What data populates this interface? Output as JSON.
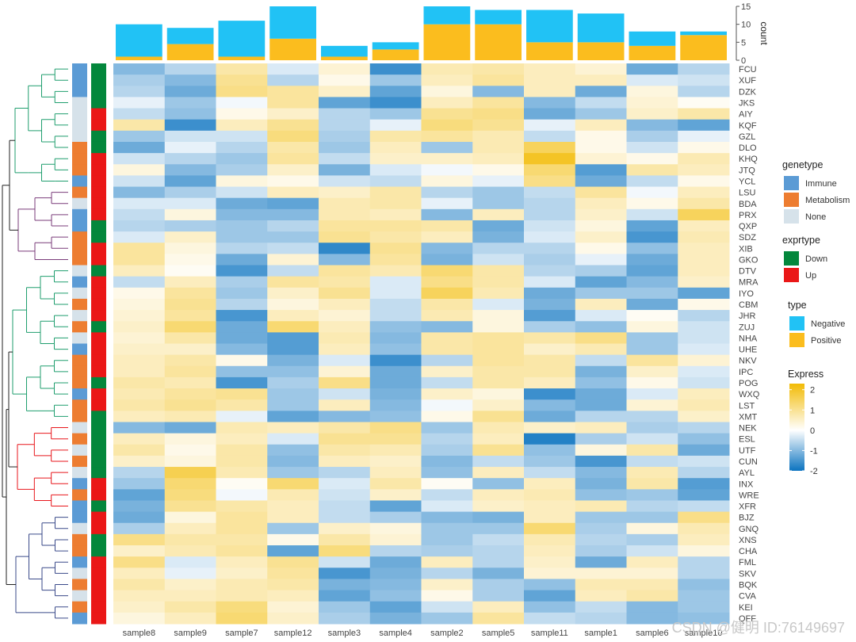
{
  "chart_data": {
    "type": "heatmap",
    "samples": [
      "sample8",
      "sample9",
      "sample7",
      "sample12",
      "sample3",
      "sample4",
      "sample2",
      "sample5",
      "sample11",
      "sample1",
      "sample6",
      "sample10"
    ],
    "genes": [
      "FCU",
      "XUF",
      "DZK",
      "JKS",
      "AIY",
      "KQF",
      "GZL",
      "DLO",
      "KHQ",
      "JTQ",
      "YCL",
      "LSU",
      "BDA",
      "PRX",
      "QXP",
      "SDZ",
      "XIB",
      "GKO",
      "DTV",
      "MRA",
      "IYO",
      "CBM",
      "JHR",
      "ZUJ",
      "NHA",
      "UHE",
      "NKV",
      "IPC",
      "POG",
      "WXQ",
      "LST",
      "XMT",
      "NEK",
      "ESL",
      "UTF",
      "CUN",
      "AYL",
      "INX",
      "WRE",
      "XFR",
      "BJZ",
      "GNQ",
      "XNS",
      "CHA",
      "FML",
      "SKV",
      "BQK",
      "CVA",
      "KEI",
      "QFF"
    ],
    "genetype": [
      "Immune",
      "Immune",
      "Immune",
      "None",
      "None",
      "None",
      "None",
      "Metabolism",
      "Metabolism",
      "Metabolism",
      "Immune",
      "Metabolism",
      "None",
      "Immune",
      "Immune",
      "Metabolism",
      "Metabolism",
      "Metabolism",
      "None",
      "Immune",
      "None",
      "Metabolism",
      "None",
      "Metabolism",
      "None",
      "Immune",
      "Metabolism",
      "Metabolism",
      "Metabolism",
      "Immune",
      "Metabolism",
      "Metabolism",
      "None",
      "Metabolism",
      "None",
      "Metabolism",
      "None",
      "Immune",
      "Metabolism",
      "Immune",
      "Immune",
      "None",
      "Metabolism",
      "Metabolism",
      "Immune",
      "None",
      "Metabolism",
      "None",
      "Metabolism",
      "Immune"
    ],
    "exprtype": [
      "Down",
      "Down",
      "Down",
      "Down",
      "Up",
      "Up",
      "Down",
      "Down",
      "Up",
      "Up",
      "Up",
      "Up",
      "Up",
      "Up",
      "Down",
      "Down",
      "Up",
      "Up",
      "Down",
      "Up",
      "Up",
      "Up",
      "Up",
      "Down",
      "Up",
      "Up",
      "Up",
      "Up",
      "Down",
      "Up",
      "Up",
      "Down",
      "Down",
      "Down",
      "Down",
      "Down",
      "Down",
      "Up",
      "Up",
      "Down",
      "Up",
      "Up",
      "Down",
      "Down",
      "Up",
      "Up",
      "Up",
      "Up",
      "Up",
      "Up"
    ],
    "values": [
      [
        -1.0,
        -0.6,
        0.8,
        -0.3,
        0.4,
        -1.6,
        0.7,
        0.8,
        0.6,
        0.4,
        -1.2,
        -0.6
      ],
      [
        -0.7,
        -1.0,
        1.0,
        -0.6,
        0.2,
        -0.8,
        0.6,
        0.9,
        0.6,
        0.6,
        -0.3,
        -0.4
      ],
      [
        -0.6,
        -1.2,
        1.1,
        0.9,
        0.5,
        -1.3,
        0.3,
        -1.0,
        0.6,
        -1.2,
        0.3,
        -0.6
      ],
      [
        -0.2,
        -0.8,
        -0.1,
        0.9,
        -1.3,
        -1.6,
        0.6,
        0.9,
        -1.0,
        -0.5,
        0.4,
        0.1
      ],
      [
        -0.5,
        -0.9,
        0.2,
        0.5,
        -0.6,
        -0.8,
        1.0,
        1.1,
        -1.2,
        -0.8,
        0.5,
        0.8
      ],
      [
        0.8,
        -1.6,
        0.6,
        1.0,
        -0.6,
        -0.2,
        1.2,
        1.0,
        -0.2,
        0.6,
        -1.0,
        -1.3
      ],
      [
        -0.8,
        -0.4,
        -0.4,
        1.2,
        -0.7,
        0.8,
        0.9,
        0.7,
        -0.5,
        0.2,
        -0.7,
        -0.2
      ],
      [
        -1.2,
        -0.2,
        -0.6,
        0.8,
        -0.8,
        0.6,
        -0.8,
        0.7,
        1.5,
        0.2,
        -0.4,
        0.2
      ],
      [
        -0.4,
        -0.6,
        -0.8,
        0.9,
        -0.5,
        0.5,
        0.5,
        0.6,
        2.0,
        0.4,
        0.2,
        0.7
      ],
      [
        0.3,
        -1.0,
        -0.7,
        0.5,
        -1.1,
        -0.3,
        -0.1,
        0.2,
        1.3,
        -1.4,
        0.8,
        0.6
      ],
      [
        -0.4,
        -1.3,
        0.3,
        0.2,
        -0.4,
        -0.5,
        0.3,
        -0.2,
        1.1,
        -1.2,
        -0.5,
        0.2
      ],
      [
        -1.0,
        -0.7,
        -0.4,
        0.6,
        0.5,
        0.8,
        -0.6,
        -0.8,
        -0.5,
        0.9,
        -0.1,
        0.6
      ],
      [
        -0.3,
        -0.3,
        -1.2,
        -1.3,
        0.7,
        0.8,
        -0.2,
        -0.8,
        -0.6,
        0.6,
        0.2,
        0.8
      ],
      [
        -0.5,
        0.3,
        -1.0,
        -1.0,
        0.7,
        0.6,
        -1.0,
        0.6,
        -0.6,
        0.5,
        -0.4,
        1.5
      ],
      [
        -0.6,
        -0.7,
        -0.8,
        -0.6,
        0.9,
        0.9,
        0.8,
        -1.2,
        -0.4,
        0.3,
        -1.3,
        0.6
      ],
      [
        -0.3,
        0.5,
        -0.8,
        -0.8,
        1.0,
        0.8,
        0.6,
        -1.1,
        -0.3,
        0.5,
        -1.5,
        0.7
      ],
      [
        0.9,
        0.3,
        -0.6,
        -0.5,
        -1.7,
        1.0,
        -1.0,
        -0.6,
        -0.6,
        0.2,
        -0.9,
        0.6
      ],
      [
        0.9,
        0.2,
        -1.2,
        0.4,
        -1.0,
        0.9,
        -1.1,
        -0.4,
        -0.7,
        -0.2,
        -1.2,
        0.6
      ],
      [
        0.6,
        0.1,
        -1.5,
        -0.5,
        0.9,
        0.7,
        1.3,
        0.8,
        -0.6,
        -0.7,
        -1.3,
        0.6
      ],
      [
        -0.5,
        0.6,
        -0.7,
        0.9,
        0.8,
        -0.3,
        1.1,
        0.8,
        -0.3,
        -1.3,
        -1.0,
        0.5
      ],
      [
        0.2,
        0.9,
        -0.8,
        0.5,
        1.0,
        -0.3,
        1.5,
        0.7,
        -1.2,
        -0.8,
        -0.8,
        -1.3
      ],
      [
        0.3,
        1.0,
        -0.6,
        0.3,
        0.6,
        -0.5,
        0.8,
        -0.3,
        -1.1,
        0.6,
        -1.2,
        0.2
      ],
      [
        0.4,
        0.9,
        -1.5,
        0.6,
        0.4,
        -0.5,
        0.7,
        0.3,
        -1.4,
        -0.3,
        0.1,
        -0.6
      ],
      [
        0.5,
        1.3,
        -1.2,
        1.3,
        0.6,
        -0.9,
        -1.0,
        0.3,
        -0.7,
        -0.9,
        0.3,
        -0.4
      ],
      [
        0.4,
        0.8,
        -1.2,
        -1.4,
        0.7,
        -1.0,
        0.8,
        0.9,
        0.8,
        1.1,
        -0.8,
        -0.4
      ],
      [
        0.5,
        0.5,
        -1.0,
        -1.4,
        0.6,
        -0.9,
        0.8,
        0.9,
        0.5,
        0.7,
        -0.8,
        -0.3
      ],
      [
        0.6,
        0.8,
        0.2,
        -1.1,
        -0.3,
        -1.6,
        -0.6,
        0.9,
        0.8,
        -0.5,
        0.9,
        0.4
      ],
      [
        0.6,
        0.9,
        -0.9,
        -0.9,
        0.4,
        -1.2,
        0.5,
        0.8,
        0.8,
        -1.1,
        0.5,
        -0.3
      ],
      [
        0.8,
        0.7,
        -1.5,
        -0.7,
        1.1,
        -1.2,
        -0.5,
        0.8,
        0.6,
        -0.9,
        0.2,
        -0.4
      ],
      [
        0.7,
        0.9,
        1.0,
        -0.8,
        -0.4,
        -1.1,
        0.5,
        0.3,
        -1.6,
        -1.2,
        -0.3,
        0.6
      ],
      [
        0.8,
        1.0,
        0.8,
        -0.8,
        0.6,
        -1.0,
        -0.1,
        0.5,
        -1.0,
        -1.2,
        0.4,
        0.7
      ],
      [
        0.6,
        0.7,
        -0.2,
        -1.3,
        -1.0,
        -0.9,
        0.2,
        1.0,
        -1.2,
        -0.6,
        -0.6,
        0.5
      ],
      [
        -1.0,
        -1.2,
        0.7,
        0.6,
        0.8,
        1.1,
        -0.8,
        0.7,
        0.5,
        0.6,
        -0.7,
        -0.6
      ],
      [
        0.6,
        0.3,
        0.6,
        -0.3,
        1.0,
        1.0,
        -0.6,
        0.6,
        -1.8,
        -0.7,
        -0.4,
        -0.9
      ],
      [
        0.8,
        0.2,
        0.8,
        -0.9,
        0.8,
        0.7,
        -0.7,
        1.0,
        -0.9,
        0.3,
        0.8,
        -1.2
      ],
      [
        0.5,
        0.3,
        0.8,
        -1.0,
        0.6,
        0.5,
        -1.0,
        -0.5,
        -0.8,
        -1.5,
        -0.5,
        -0.4
      ],
      [
        -0.6,
        1.6,
        0.7,
        -0.8,
        -0.6,
        0.6,
        -0.9,
        0.6,
        -0.5,
        -1.0,
        0.7,
        -0.6
      ],
      [
        -0.8,
        1.3,
        0.1,
        1.3,
        -0.3,
        0.8,
        0.1,
        -0.9,
        0.6,
        -1.1,
        0.8,
        -1.4
      ],
      [
        -1.3,
        1.2,
        -0.1,
        0.7,
        -0.4,
        0.5,
        -0.5,
        0.6,
        0.7,
        -0.9,
        -0.8,
        -1.3
      ],
      [
        -1.1,
        1.0,
        0.8,
        0.6,
        -0.5,
        -1.3,
        -0.3,
        0.5,
        0.6,
        0.7,
        -0.6,
        -0.5
      ],
      [
        -1.2,
        0.3,
        0.9,
        0.6,
        -0.5,
        -0.7,
        -1.0,
        -1.1,
        0.6,
        -0.8,
        -0.8,
        1.1
      ],
      [
        -0.7,
        0.6,
        0.9,
        -0.8,
        0.5,
        0.3,
        -0.8,
        -0.8,
        1.3,
        -0.7,
        0.3,
        0.7
      ],
      [
        1.1,
        0.8,
        0.8,
        0.2,
        0.8,
        0.4,
        -0.8,
        -0.5,
        0.7,
        -0.6,
        -0.7,
        0.6
      ],
      [
        0.5,
        0.7,
        0.9,
        -1.3,
        1.2,
        -0.6,
        -0.7,
        -0.6,
        0.6,
        -0.7,
        -0.4,
        0.3
      ],
      [
        1.1,
        -0.3,
        0.6,
        1.0,
        -0.4,
        -1.2,
        0.6,
        -0.6,
        0.5,
        -1.2,
        0.6,
        -0.6
      ],
      [
        0.6,
        -0.2,
        0.5,
        0.9,
        -1.5,
        -1.1,
        -0.6,
        -1.1,
        0.4,
        0.4,
        0.4,
        -0.6
      ],
      [
        0.8,
        0.5,
        0.7,
        0.8,
        -1.1,
        -1.0,
        0.5,
        -0.7,
        -0.9,
        0.7,
        0.7,
        -0.9
      ],
      [
        0.6,
        0.6,
        0.7,
        0.6,
        -1.3,
        -0.9,
        0.2,
        -0.7,
        -1.3,
        0.6,
        0.8,
        -0.8
      ],
      [
        0.5,
        0.8,
        1.2,
        0.4,
        -0.8,
        -1.3,
        -0.4,
        0.6,
        -0.9,
        -0.5,
        -1.0,
        -0.8
      ],
      [
        0.3,
        0.6,
        1.3,
        0.5,
        -0.7,
        -1.1,
        -0.8,
        0.9,
        -0.5,
        -0.6,
        -1.0,
        -0.9
      ]
    ],
    "count": {
      "axis_label": "count",
      "ylim": [
        0,
        15
      ],
      "ticks": [
        0,
        5,
        10,
        15
      ],
      "negative": [
        9,
        4.5,
        10,
        9,
        3,
        2,
        5,
        4,
        9,
        8,
        4,
        1
      ],
      "positive": [
        1,
        4.5,
        1,
        6,
        1,
        3,
        10,
        10,
        5,
        5,
        4,
        7
      ]
    },
    "color_scale": {
      "min": -2,
      "max": 2.3,
      "stops": [
        {
          "v": -2,
          "color": "#0b73c0"
        },
        {
          "v": 0,
          "color": "#ffffff"
        },
        {
          "v": 2.3,
          "color": "#f2bb05"
        }
      ],
      "ticks": [
        2,
        1,
        0,
        -1,
        -2
      ]
    },
    "legends": {
      "genetype": {
        "title": "genetype",
        "items": [
          {
            "label": "Immune",
            "color": "#5b9bd5"
          },
          {
            "label": "Metabolism",
            "color": "#ed7d31"
          },
          {
            "label": "None",
            "color": "#d6e2ea"
          }
        ]
      },
      "exprtype": {
        "title": "exprtype",
        "items": [
          {
            "label": "Down",
            "color": "#03873c"
          },
          {
            "label": "Up",
            "color": "#ea1717"
          }
        ]
      },
      "type": {
        "title": "type",
        "items": [
          {
            "label": "Negative",
            "color": "#21c2f5"
          },
          {
            "label": "Positive",
            "color": "#fbbd1e"
          }
        ]
      },
      "express": {
        "title": "Express"
      }
    },
    "dendrogram_color_runs": [
      {
        "count": 11,
        "color": "#1f9e6e"
      },
      {
        "count": 7,
        "color": "#7a3b7a"
      },
      {
        "count": 14,
        "color": "#1f9e6e"
      },
      {
        "count": 8,
        "color": "#e8161b"
      },
      {
        "count": 10,
        "color": "#3a4a8a"
      }
    ]
  },
  "watermark": "CSDN @健明 ID:76149697"
}
